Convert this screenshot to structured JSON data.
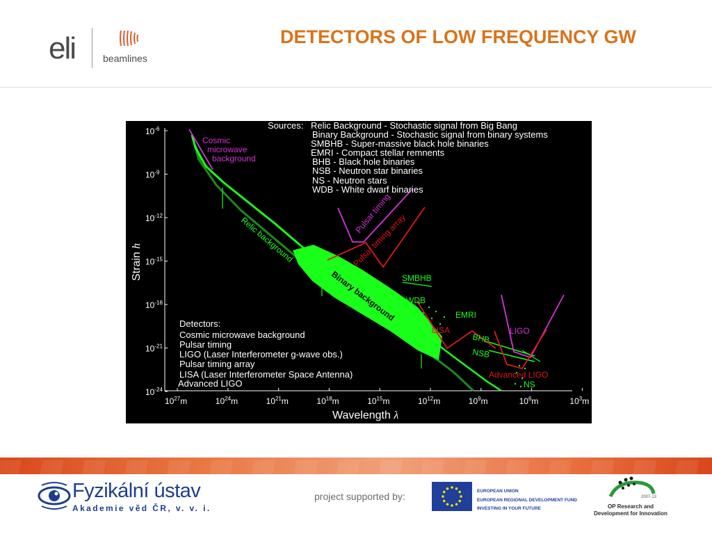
{
  "header": {
    "logo_text": "eli",
    "logo_sub": "beamlines",
    "title": "DETECTORS OF LOW FREQUENCY GW"
  },
  "figure": {
    "sources_heading": "Sources:",
    "sources": [
      "Relic Background - Stochastic signal from Big Bang",
      "Binary Background - Stochastic signal from binary systems",
      "SMBHB - Super-massive black hole binaries",
      "EMRI - Compact stellar remnents",
      "BHB - Black hole binaries",
      "NSB - Neutron star binaries",
      "NS - Neutron stars",
      "WDB - White dwarf binaries"
    ],
    "detectors_heading": "Detectors:",
    "detectors": [
      "Cosmic microwave background",
      "Pulsar timing",
      "LIGO (Laser Interferometer g-wave obs.)",
      "Pulsar timing array",
      "LISA (Laser Interferometer Space Antenna)",
      "Advanced LIGO"
    ],
    "labels": {
      "cmb": [
        "Cosmic",
        "microwave",
        "background"
      ],
      "pulsar_timing": "Pulsar timing",
      "pulsar_timing_array": "Pulsar timing array",
      "relic": "Relic background",
      "binary": "Binary background",
      "smbhb": "SMBHB",
      "wdb": "WDB",
      "emri": "EMRI",
      "lisa": "LISA",
      "bhb": "BHB",
      "nsb": "NSB",
      "ligo": "LIGO",
      "adv_ligo": "Advanced LIGO",
      "ns": "NS"
    },
    "y_axis_label": "Strain",
    "y_axis_symbol": "h",
    "x_axis_label": "Wavelength",
    "x_axis_symbol": "λ",
    "y_ticks": [
      "-6",
      "-9",
      "-12",
      "-15",
      "-18",
      "-21",
      "-24"
    ],
    "x_ticks": [
      "27",
      "24",
      "21",
      "18",
      "15",
      "12",
      "9",
      "6",
      "3"
    ],
    "colors": {
      "green": "#19ff19",
      "dark_green": "#1c8a1c",
      "magenta": "#d633d6",
      "red": "#e01818",
      "white": "#ffffff"
    }
  },
  "footer": {
    "fzu_name": "Fyzikální ústav",
    "fzu_sub": "Akademie věd ČR, v. v. i.",
    "project_supported": "project supported by:",
    "eu_lines": [
      "EUROPEAN UNION",
      "EUROPEAN REGIONAL DEVELOPMENT FUND",
      "INVESTING IN YOUR FUTURE"
    ],
    "op_year": "2007-13",
    "op_lines": [
      "OP Research and",
      "Development for Innovation"
    ]
  }
}
